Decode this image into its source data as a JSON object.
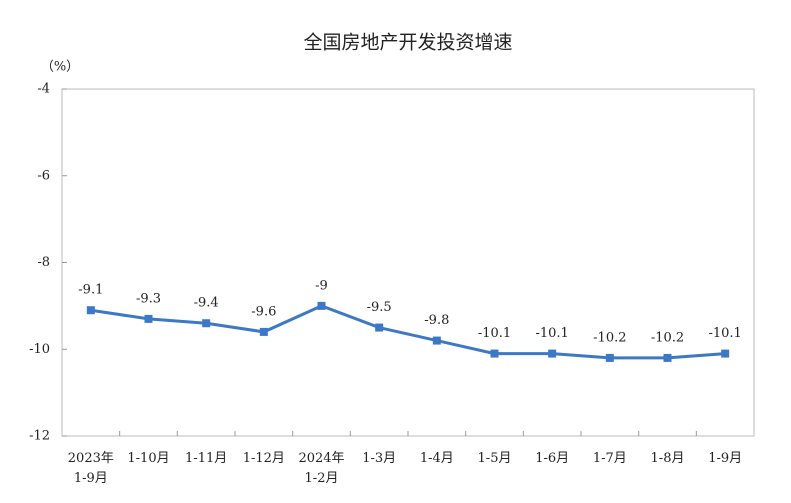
{
  "chart_data": {
    "type": "line",
    "title": "全国房地产开发投资增速",
    "y_label": "（%）",
    "categories": [
      "2023年\n1-9月",
      "1-10月",
      "1-11月",
      "1-12月",
      "2024年\n1-2月",
      "1-3月",
      "1-4月",
      "1-5月",
      "1-6月",
      "1-7月",
      "1-8月",
      "1-9月"
    ],
    "series": [
      {
        "name": "全国房地产开发投资增速",
        "color": "#3d78c6",
        "values": [
          -9.1,
          -9.3,
          -9.4,
          -9.6,
          -9.0,
          -9.5,
          -9.8,
          -10.1,
          -10.1,
          -10.2,
          -10.2,
          -10.1
        ]
      }
    ],
    "ylim": [
      -12,
      -4
    ],
    "yticks": [
      -12,
      -10,
      -8,
      -6,
      -4
    ]
  }
}
